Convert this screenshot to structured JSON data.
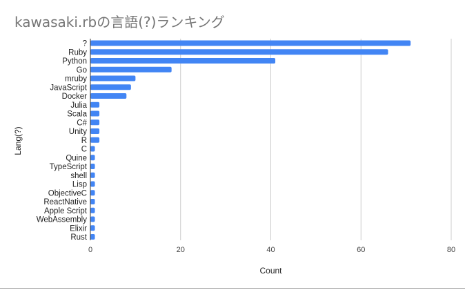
{
  "chart_data": {
    "type": "bar",
    "orientation": "horizontal",
    "title": "kawasaki.rbの言語(?)ランキング",
    "xlabel": "Count",
    "ylabel": "Lang(?)",
    "xlim": [
      0,
      80
    ],
    "xticks": [
      0,
      20,
      40,
      60,
      80
    ],
    "grid": true,
    "legend": "none",
    "bar_color": "#4285f4",
    "categories": [
      "?",
      "Ruby",
      "Python",
      "Go",
      "mruby",
      "JavaScript",
      "Docker",
      "Julia",
      "Scala",
      "C#",
      "Unity",
      "R",
      "C",
      "Quine",
      "TypeScript",
      "shell",
      "Lisp",
      "ObjectiveC",
      "ReactNative",
      "Apple Script",
      "WebAssembly",
      "Elixir",
      "Rust"
    ],
    "values": [
      71,
      66,
      41,
      18,
      10,
      9,
      8,
      2,
      2,
      2,
      2,
      2,
      1,
      1,
      1,
      1,
      1,
      1,
      1,
      1,
      1,
      1,
      1
    ]
  }
}
